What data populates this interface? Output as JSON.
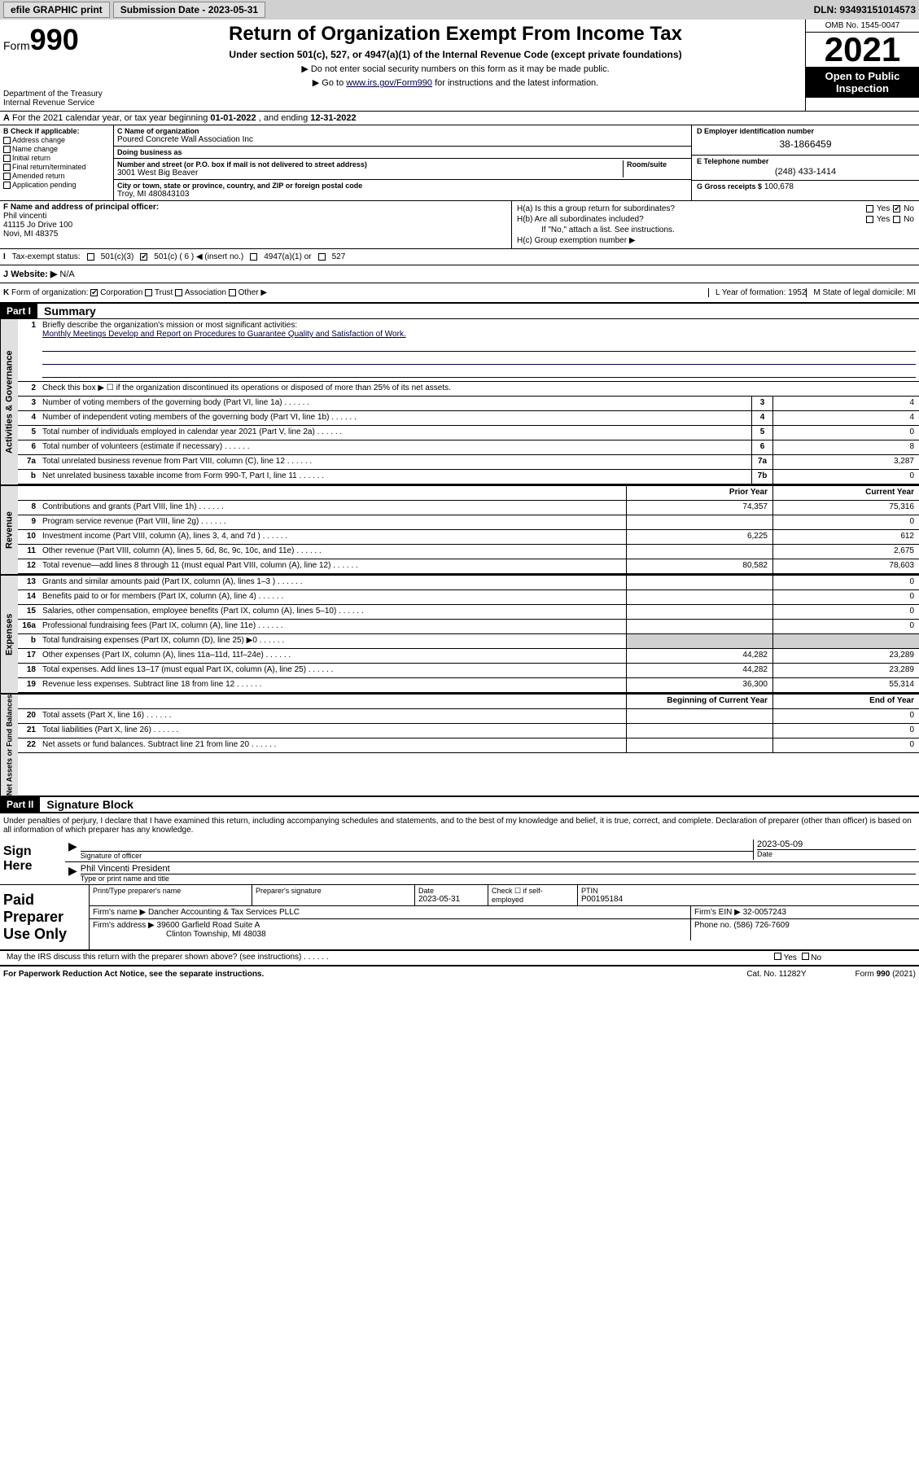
{
  "topbar": {
    "efile": "efile GRAPHIC print",
    "submission_label": "Submission Date - 2023-05-31",
    "dln": "DLN: 93493151014573"
  },
  "header": {
    "form_word": "Form",
    "form_num": "990",
    "dept": "Department of the Treasury\nInternal Revenue Service",
    "title": "Return of Organization Exempt From Income Tax",
    "subtitle": "Under section 501(c), 527, or 4947(a)(1) of the Internal Revenue Code (except private foundations)",
    "note1": "▶ Do not enter social security numbers on this form as it may be made public.",
    "note2_pre": "▶ Go to ",
    "note2_link": "www.irs.gov/Form990",
    "note2_post": " for instructions and the latest information.",
    "omb": "OMB No. 1545-0047",
    "year": "2021",
    "public": "Open to Public Inspection"
  },
  "row_a": {
    "label": "A",
    "text_pre": "For the 2021 calendar year, or tax year beginning ",
    "begin": "01-01-2022",
    "mid": " , and ending ",
    "end": "12-31-2022"
  },
  "col_b": {
    "label": "B Check if applicable:",
    "items": [
      "Address change",
      "Name change",
      "Initial return",
      "Final return/terminated",
      "Amended return",
      "Application pending"
    ]
  },
  "col_c": {
    "name_lbl": "C Name of organization",
    "name": "Poured Concrete Wall Association Inc",
    "dba_lbl": "Doing business as",
    "dba": "",
    "addr_lbl": "Number and street (or P.O. box if mail is not delivered to street address)",
    "room_lbl": "Room/suite",
    "addr": "3001 West Big Beaver",
    "city_lbl": "City or town, state or province, country, and ZIP or foreign postal code",
    "city": "Troy, MI  480843103"
  },
  "col_d": {
    "ein_lbl": "D Employer identification number",
    "ein": "38-1866459",
    "phone_lbl": "E Telephone number",
    "phone": "(248) 433-1414",
    "gross_lbl": "G Gross receipts $",
    "gross": "100,678"
  },
  "col_f": {
    "lbl": "F Name and address of principal officer:",
    "name": "Phil vincenti",
    "addr1": "41115 Jo Drive 100",
    "addr2": "Novi, MI  48375"
  },
  "col_h": {
    "ha": "H(a)  Is this a group return for subordinates?",
    "hb": "H(b)  Are all subordinates included?",
    "hb_note": "If \"No,\" attach a list. See instructions.",
    "hc": "H(c)  Group exemption number ▶",
    "yes": "Yes",
    "no": "No"
  },
  "status": {
    "i": "I",
    "lbl": "Tax-exempt status:",
    "c3": "501(c)(3)",
    "c": "501(c) ( 6 ) ◀ (insert no.)",
    "a1": "4947(a)(1) or",
    "s527": "527"
  },
  "website": {
    "j": "J",
    "lbl": "Website: ▶",
    "val": "N/A"
  },
  "k_row": {
    "k": "K",
    "lbl": "Form of organization:",
    "corp": "Corporation",
    "trust": "Trust",
    "assoc": "Association",
    "other": "Other ▶",
    "l": "L Year of formation: 1952",
    "m": "M State of legal domicile: MI"
  },
  "part1": {
    "hdr": "Part I",
    "title": "Summary",
    "line1_lbl": "Briefly describe the organization's mission or most significant activities:",
    "line1_text": "Monthly Meetings Develop and Report on Procedures to Guarantee Quality and Satisfaction of Work.",
    "line2": "Check this box ▶ ☐  if the organization discontinued its operations or disposed of more than 25% of its net assets.",
    "lines": [
      {
        "n": "3",
        "d": "Number of voting members of the governing body (Part VI, line 1a)",
        "box": "3",
        "v2": "4"
      },
      {
        "n": "4",
        "d": "Number of independent voting members of the governing body (Part VI, line 1b)",
        "box": "4",
        "v2": "4"
      },
      {
        "n": "5",
        "d": "Total number of individuals employed in calendar year 2021 (Part V, line 2a)",
        "box": "5",
        "v2": "0"
      },
      {
        "n": "6",
        "d": "Total number of volunteers (estimate if necessary)",
        "box": "6",
        "v2": "8"
      },
      {
        "n": "7a",
        "d": "Total unrelated business revenue from Part VIII, column (C), line 12",
        "box": "7a",
        "v2": "3,287"
      },
      {
        "n": "b",
        "d": "Net unrelated business taxable income from Form 990-T, Part I, line 11",
        "box": "7b",
        "v2": "0"
      }
    ],
    "hdr_prior": "Prior Year",
    "hdr_current": "Current Year",
    "rev_lines": [
      {
        "n": "8",
        "d": "Contributions and grants (Part VIII, line 1h)",
        "v1": "74,357",
        "v2": "75,316"
      },
      {
        "n": "9",
        "d": "Program service revenue (Part VIII, line 2g)",
        "v1": "",
        "v2": "0"
      },
      {
        "n": "10",
        "d": "Investment income (Part VIII, column (A), lines 3, 4, and 7d )",
        "v1": "6,225",
        "v2": "612"
      },
      {
        "n": "11",
        "d": "Other revenue (Part VIII, column (A), lines 5, 6d, 8c, 9c, 10c, and 11e)",
        "v1": "",
        "v2": "2,675"
      },
      {
        "n": "12",
        "d": "Total revenue—add lines 8 through 11 (must equal Part VIII, column (A), line 12)",
        "v1": "80,582",
        "v2": "78,603"
      }
    ],
    "exp_lines": [
      {
        "n": "13",
        "d": "Grants and similar amounts paid (Part IX, column (A), lines 1–3 )",
        "v1": "",
        "v2": "0"
      },
      {
        "n": "14",
        "d": "Benefits paid to or for members (Part IX, column (A), line 4)",
        "v1": "",
        "v2": "0"
      },
      {
        "n": "15",
        "d": "Salaries, other compensation, employee benefits (Part IX, column (A), lines 5–10)",
        "v1": "",
        "v2": "0"
      },
      {
        "n": "16a",
        "d": "Professional fundraising fees (Part IX, column (A), line 11e)",
        "v1": "",
        "v2": "0"
      },
      {
        "n": "b",
        "d": "Total fundraising expenses (Part IX, column (D), line 25) ▶0",
        "v1": "gray",
        "v2": "gray"
      },
      {
        "n": "17",
        "d": "Other expenses (Part IX, column (A), lines 11a–11d, 11f–24e)",
        "v1": "44,282",
        "v2": "23,289"
      },
      {
        "n": "18",
        "d": "Total expenses. Add lines 13–17 (must equal Part IX, column (A), line 25)",
        "v1": "44,282",
        "v2": "23,289"
      },
      {
        "n": "19",
        "d": "Revenue less expenses. Subtract line 18 from line 12",
        "v1": "36,300",
        "v2": "55,314"
      }
    ],
    "hdr_begin": "Beginning of Current Year",
    "hdr_end": "End of Year",
    "net_lines": [
      {
        "n": "20",
        "d": "Total assets (Part X, line 16)",
        "v1": "",
        "v2": "0"
      },
      {
        "n": "21",
        "d": "Total liabilities (Part X, line 26)",
        "v1": "",
        "v2": "0"
      },
      {
        "n": "22",
        "d": "Net assets or fund balances. Subtract line 21 from line 20",
        "v1": "",
        "v2": "0"
      }
    ]
  },
  "sidelabels": {
    "gov": "Activities & Governance",
    "rev": "Revenue",
    "exp": "Expenses",
    "net": "Net Assets or Fund Balances"
  },
  "part2": {
    "hdr": "Part II",
    "title": "Signature Block",
    "perjury": "Under penalties of perjury, I declare that I have examined this return, including accompanying schedules and statements, and to the best of my knowledge and belief, it is true, correct, and complete. Declaration of preparer (other than officer) is based on all information of which preparer has any knowledge.",
    "sign_here": "Sign Here",
    "sig_officer": "Signature of officer",
    "date": "Date",
    "date_val": "2023-05-09",
    "name_title": "Phil Vincenti  President",
    "type_name": "Type or print name and title",
    "paid": "Paid Preparer Use Only",
    "prep_name_lbl": "Print/Type preparer's name",
    "prep_sig_lbl": "Preparer's signature",
    "prep_date_lbl": "Date",
    "prep_date": "2023-05-31",
    "check_if": "Check ☐ if self-employed",
    "ptin_lbl": "PTIN",
    "ptin": "P00195184",
    "firm_lbl": "Firm's name    ▶",
    "firm": "Dancher Accounting & Tax Services PLLC",
    "firm_ein_lbl": "Firm's EIN ▶",
    "firm_ein": "32-0057243",
    "firm_addr_lbl": "Firm's address ▶",
    "firm_addr1": "39600 Garfield Road Suite A",
    "firm_addr2": "Clinton Township, MI  48038",
    "firm_phone_lbl": "Phone no.",
    "firm_phone": "(586) 726-7609",
    "discuss": "May the IRS discuss this return with the preparer shown above? (see instructions)"
  },
  "footer": {
    "pra": "For Paperwork Reduction Act Notice, see the separate instructions.",
    "cat": "Cat. No. 11282Y",
    "form": "Form 990 (2021)"
  }
}
